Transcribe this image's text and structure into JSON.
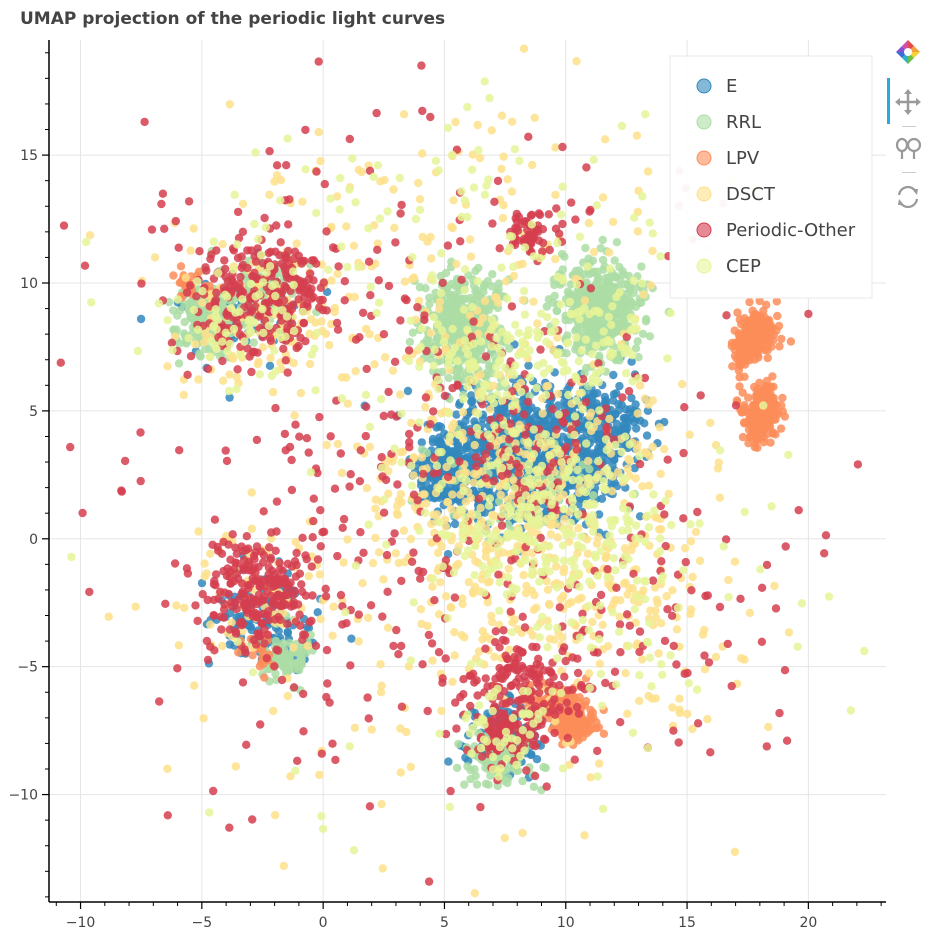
{
  "chart_data": {
    "type": "scatter",
    "title": "UMAP projection of the periodic light curves",
    "xlabel": "",
    "ylabel": "",
    "xlim": [
      -11.3,
      23.2
    ],
    "ylim": [
      -14.2,
      19.5
    ],
    "xticks": [
      -10,
      -5,
      0,
      5,
      10,
      15,
      20
    ],
    "yticks": [
      -10,
      -5,
      0,
      5,
      10,
      15
    ],
    "xtick_labels": [
      "−10",
      "−5",
      "0",
      "5",
      "10",
      "15",
      "20"
    ],
    "ytick_labels": [
      "−10",
      "−5",
      "0",
      "5",
      "10",
      "15"
    ],
    "grid": true,
    "legend_position": "top-right",
    "series": [
      {
        "name": "E",
        "color": "#3288bd",
        "clusters": [
          {
            "cx": 8.5,
            "cy": 3.3,
            "sx": 1.7,
            "sy": 1.3,
            "n": 900
          },
          {
            "cx": 5.3,
            "cy": 2.6,
            "sx": 0.7,
            "sy": 0.8,
            "n": 220
          },
          {
            "cx": 11.5,
            "cy": 4.5,
            "sx": 0.9,
            "sy": 0.9,
            "n": 160
          },
          {
            "cx": -2.5,
            "cy": -3.0,
            "sx": 1.1,
            "sy": 1.0,
            "n": 120
          },
          {
            "cx": 7.5,
            "cy": -7.8,
            "sx": 0.8,
            "sy": 0.8,
            "n": 120
          },
          {
            "cx": -3.5,
            "cy": 8.8,
            "sx": 1.3,
            "sy": 0.8,
            "n": 80
          }
        ]
      },
      {
        "name": "RRL",
        "color": "#abdda4",
        "clusters": [
          {
            "cx": 5.8,
            "cy": 8.3,
            "sx": 0.75,
            "sy": 1.0,
            "n": 420
          },
          {
            "cx": 11.5,
            "cy": 8.9,
            "sx": 0.9,
            "sy": 0.95,
            "n": 420
          },
          {
            "cx": -4.8,
            "cy": 8.6,
            "sx": 0.7,
            "sy": 0.7,
            "n": 220
          },
          {
            "cx": -2.3,
            "cy": 9.8,
            "sx": 0.6,
            "sy": 0.5,
            "n": 120
          },
          {
            "cx": -1.6,
            "cy": -4.6,
            "sx": 0.5,
            "sy": 0.5,
            "n": 80
          },
          {
            "cx": 7.2,
            "cy": -8.7,
            "sx": 0.7,
            "sy": 0.6,
            "n": 100
          },
          {
            "cx": 8.3,
            "cy": 2.6,
            "sx": 2.0,
            "sy": 1.4,
            "n": 60
          }
        ]
      },
      {
        "name": "LPV",
        "color": "#fc8d59",
        "clusters": [
          {
            "cx": 17.9,
            "cy": 8.0,
            "sx": 0.35,
            "sy": 0.45,
            "n": 160
          },
          {
            "cx": 17.3,
            "cy": 7.2,
            "sx": 0.2,
            "sy": 0.6,
            "n": 60
          },
          {
            "cx": 18.3,
            "cy": 5.3,
            "sx": 0.25,
            "sy": 0.35,
            "n": 80
          },
          {
            "cx": 18.0,
            "cy": 4.7,
            "sx": 0.4,
            "sy": 0.5,
            "n": 120
          },
          {
            "cx": 10.3,
            "cy": -7.2,
            "sx": 0.45,
            "sy": 0.35,
            "n": 140
          },
          {
            "cx": 9.4,
            "cy": -6.3,
            "sx": 0.6,
            "sy": 0.35,
            "n": 60
          },
          {
            "cx": -5.6,
            "cy": 10.0,
            "sx": 0.4,
            "sy": 0.3,
            "n": 30
          },
          {
            "cx": -2.6,
            "cy": -4.6,
            "sx": 0.4,
            "sy": 0.4,
            "n": 20
          }
        ]
      },
      {
        "name": "DSCT",
        "color": "#fee08b",
        "clusters": [
          {
            "cx": 8.0,
            "cy": 1.5,
            "sx": 3.5,
            "sy": 3.0,
            "n": 500
          },
          {
            "cx": -2.5,
            "cy": 8.5,
            "sx": 2.0,
            "sy": 1.5,
            "n": 130
          },
          {
            "cx": 5.0,
            "cy": 12.0,
            "sx": 5.0,
            "sy": 3.0,
            "n": 150
          },
          {
            "cx": 12.0,
            "cy": -3.0,
            "sx": 3.5,
            "sy": 2.5,
            "n": 130
          },
          {
            "cx": 3.0,
            "cy": -6.0,
            "sx": 5.0,
            "sy": 3.5,
            "n": 80
          },
          {
            "cx": -3.0,
            "cy": -2.0,
            "sx": 1.5,
            "sy": 1.2,
            "n": 60
          }
        ]
      },
      {
        "name": "Periodic-Other",
        "color": "#d53e4f",
        "clusters": [
          {
            "cx": -2.5,
            "cy": 9.5,
            "sx": 1.5,
            "sy": 1.2,
            "n": 240
          },
          {
            "cx": -2.5,
            "cy": -2.0,
            "sx": 1.2,
            "sy": 1.1,
            "n": 230
          },
          {
            "cx": 8.0,
            "cy": -5.8,
            "sx": 1.3,
            "sy": 1.2,
            "n": 160
          },
          {
            "cx": 7.5,
            "cy": -7.8,
            "sx": 0.7,
            "sy": 0.6,
            "n": 70
          },
          {
            "cx": 8.5,
            "cy": 12.0,
            "sx": 0.6,
            "sy": 0.4,
            "n": 50
          },
          {
            "cx": 3.0,
            "cy": 4.0,
            "sx": 7.0,
            "sy": 7.0,
            "n": 380
          },
          {
            "cx": 13.0,
            "cy": -3.0,
            "sx": 4.0,
            "sy": 3.0,
            "n": 80
          },
          {
            "cx": 9.0,
            "cy": 3.0,
            "sx": 2.0,
            "sy": 1.5,
            "n": 70
          }
        ]
      },
      {
        "name": "CEP",
        "color": "#e6f598",
        "clusters": [
          {
            "cx": 8.5,
            "cy": 1.0,
            "sx": 2.5,
            "sy": 2.0,
            "n": 260
          },
          {
            "cx": 6.5,
            "cy": 7.0,
            "sx": 1.5,
            "sy": 1.5,
            "n": 100
          },
          {
            "cx": 11.0,
            "cy": 8.0,
            "sx": 1.2,
            "sy": 1.2,
            "n": 70
          },
          {
            "cx": -3.5,
            "cy": 8.5,
            "sx": 1.5,
            "sy": 1.2,
            "n": 70
          },
          {
            "cx": 5.0,
            "cy": 13.0,
            "sx": 5.0,
            "sy": 2.0,
            "n": 80
          },
          {
            "cx": 13.0,
            "cy": -3.0,
            "sx": 4.0,
            "sy": 3.0,
            "n": 70
          },
          {
            "cx": 7.5,
            "cy": -7.5,
            "sx": 1.0,
            "sy": 1.0,
            "n": 50
          },
          {
            "cx": 3.0,
            "cy": 0.0,
            "sx": 7.0,
            "sy": 7.0,
            "n": 60
          }
        ]
      }
    ]
  },
  "toolbar": {
    "tools": [
      {
        "name": "bokeh-logo-icon",
        "active": false
      },
      {
        "name": "pan-tool-icon",
        "active": true
      },
      {
        "name": "wheel-zoom-icon",
        "active": false
      },
      {
        "name": "reset-icon",
        "active": false
      }
    ]
  }
}
